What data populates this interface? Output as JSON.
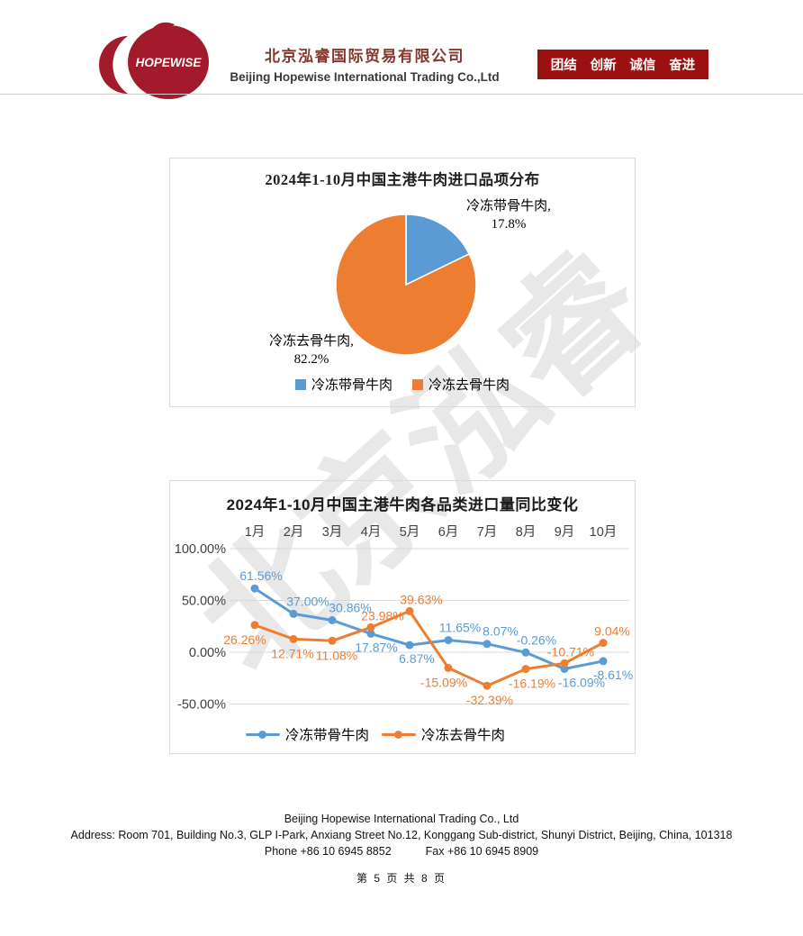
{
  "header": {
    "logo_text": "HOPEWISE",
    "company_name_zh": "北京泓睿国际贸易有限公司",
    "company_name_en": "Beijing Hopewise International Trading Co.,Ltd",
    "values_badge": [
      "团结",
      "创新",
      "诚信",
      "奋进"
    ]
  },
  "watermark": "北京泓睿",
  "colors": {
    "brand_red": "#9b1111",
    "logo_red": "#a31a2d",
    "series_blue": "#5B9BD5",
    "series_orange": "#ED7D31",
    "grid_gray": "#d9d9d9",
    "axis_text": "#404040"
  },
  "chart_data": [
    {
      "type": "pie",
      "title": "2024年1-10月中国主港牛肉进口品项分布",
      "start_angle_deg": -90,
      "direction": "clockwise",
      "slices": [
        {
          "label": "冷冻带骨牛肉",
          "value": 17.8,
          "color": "#5B9BD5",
          "callout_name": "冷冻带骨牛肉,",
          "callout_value": "17.8%"
        },
        {
          "label": "冷冻去骨牛肉",
          "value": 82.2,
          "color": "#ED7D31",
          "callout_name": "冷冻去骨牛肉,",
          "callout_value": "82.2%"
        }
      ],
      "legend_position": "bottom"
    },
    {
      "type": "line",
      "title": "2024年1-10月中国主港牛肉各品类进口量同比变化",
      "categories": [
        "1月",
        "2月",
        "3月",
        "4月",
        "5月",
        "6月",
        "7月",
        "8月",
        "9月",
        "10月"
      ],
      "x_axis_position": "top",
      "grid": true,
      "ylim": [
        -50,
        100
      ],
      "y_ticks": [
        {
          "label": "100.00%",
          "value": 100
        },
        {
          "label": "50.00%",
          "value": 50
        },
        {
          "label": "0.00%",
          "value": 0
        },
        {
          "label": "-50.00%",
          "value": -50
        }
      ],
      "series": [
        {
          "name": "冷冻带骨牛肉",
          "color": "#5B9BD5",
          "values": [
            61.56,
            37.0,
            30.86,
            17.87,
            6.87,
            11.65,
            8.07,
            -0.26,
            -16.09,
            -8.61
          ],
          "data_labels": [
            "61.56%",
            "37.00%",
            "30.86%",
            "17.87%",
            "6.87%",
            "11.65%",
            "8.07%",
            "-0.26%",
            "-16.09%",
            "-8.61%"
          ],
          "label_side": [
            "above",
            "above",
            "above",
            "below",
            "below",
            "above",
            "above",
            "above",
            "below",
            "below"
          ],
          "label_dx": [
            7,
            16,
            20,
            6,
            8,
            13,
            15,
            12,
            19,
            11
          ]
        },
        {
          "name": "冷冻去骨牛肉",
          "color": "#ED7D31",
          "values": [
            26.26,
            12.71,
            11.08,
            23.98,
            39.63,
            -15.09,
            -32.39,
            -16.19,
            -10.71,
            9.04
          ],
          "data_labels": [
            "26.26%",
            "12.71%",
            "11.08%",
            "23.98%",
            "39.63%",
            "-15.09%",
            "-32.39%",
            "-16.19%",
            "-10.71%",
            "9.04%"
          ],
          "label_side": [
            "below",
            "below",
            "below",
            "above",
            "above",
            "below",
            "below",
            "below",
            "above",
            "above"
          ],
          "label_dx": [
            -11,
            -1,
            5,
            13,
            13,
            -5,
            3,
            7,
            7,
            10
          ]
        }
      ],
      "legend_position": "bottom"
    }
  ],
  "footer": {
    "company": "Beijing Hopewise International Trading Co., Ltd",
    "address": "Address: Room 701, Building No.3, GLP I-Park, Anxiang Street No.12, Konggang Sub-district, Shunyi District, Beijing, China, 101318",
    "phone": "Phone +86 10 6945 8852",
    "fax": "Fax +86 10 6945 8909",
    "page_indicator": "第 5 页 共 8 页"
  }
}
